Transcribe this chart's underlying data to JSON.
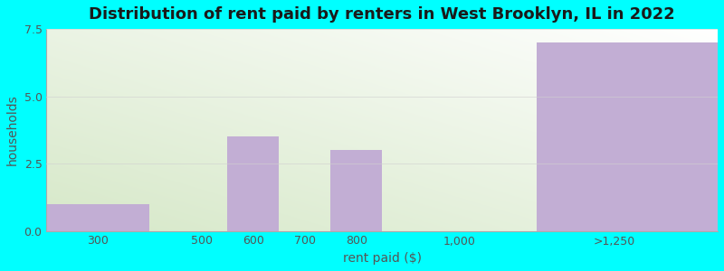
{
  "title": "Distribution of rent paid by renters in West Brooklyn, IL in 2022",
  "xlabel": "rent paid ($)",
  "ylabel": "households",
  "bar_labels": [
    "300",
    "500",
    "600",
    "700",
    "800",
    "1,000",
    ">1,250"
  ],
  "bar_centers": [
    1,
    3,
    4,
    5,
    6,
    8,
    11
  ],
  "bar_heights": [
    1.0,
    0.0,
    3.5,
    0.0,
    3.0,
    0.0,
    7.0
  ],
  "bar_lefts": [
    0,
    2,
    3.5,
    4.5,
    5.5,
    7,
    9.5
  ],
  "bar_rights": [
    2,
    2,
    4.5,
    5.5,
    6.5,
    9,
    13
  ],
  "tick_positions": [
    1,
    3,
    4,
    5,
    6,
    8,
    11
  ],
  "bar_color": "#c2aed4",
  "ylim": [
    0,
    7.5
  ],
  "yticks": [
    0,
    2.5,
    5,
    7.5
  ],
  "outer_bg_color": "#00FFFF",
  "title_fontsize": 13,
  "axis_label_fontsize": 10,
  "tick_fontsize": 9,
  "title_color": "#1a1a1a",
  "axis_label_color": "#555555",
  "tick_color": "#555555",
  "grid_color": "#d0d0d0",
  "grid_alpha": 0.7
}
